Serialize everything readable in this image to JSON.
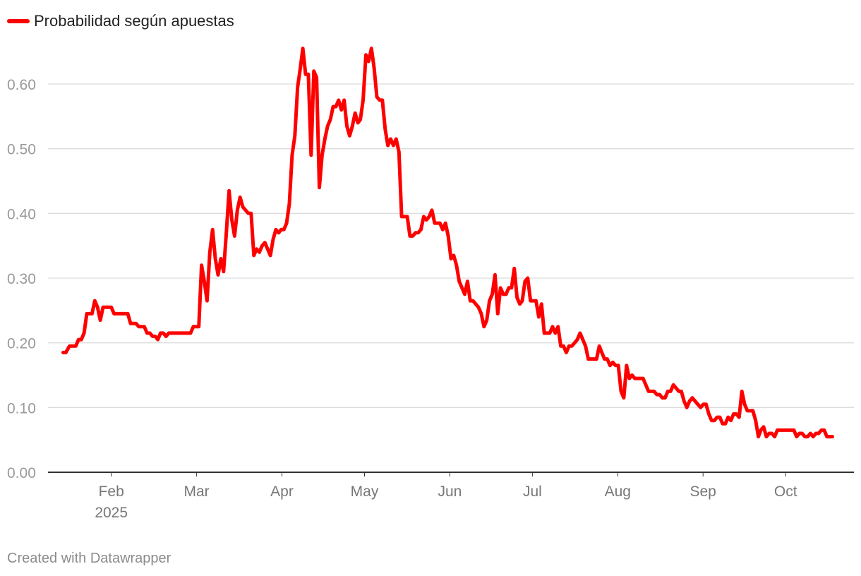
{
  "legend": {
    "label": "Probabilidad según apuestas",
    "color": "#ff0000"
  },
  "footer": {
    "credit": "Created with Datawrapper"
  },
  "chart_data": {
    "type": "line",
    "title": "",
    "xlabel": "",
    "ylabel": "",
    "ylim": [
      0,
      0.65
    ],
    "y_ticks": [
      "0.00",
      "0.10",
      "0.20",
      "0.30",
      "0.40",
      "0.50",
      "0.60"
    ],
    "x_domain_days": [
      0,
      291
    ],
    "x_ticks": [
      {
        "day": 23,
        "label": "Feb",
        "sublabel": "2025"
      },
      {
        "day": 54,
        "label": "Mar"
      },
      {
        "day": 85,
        "label": "Apr"
      },
      {
        "day": 115,
        "label": "May"
      },
      {
        "day": 146,
        "label": "Jun"
      },
      {
        "day": 176,
        "label": "Jul"
      },
      {
        "day": 207,
        "label": "Aug"
      },
      {
        "day": 238,
        "label": "Sep"
      },
      {
        "day": 268,
        "label": "Oct"
      }
    ],
    "grid": true,
    "series": [
      {
        "name": "Probabilidad según apuestas",
        "color": "#ff0000",
        "points": [
          [
            5.5,
            0.185
          ],
          [
            6.5,
            0.185
          ],
          [
            7.8,
            0.195
          ],
          [
            9.3,
            0.195
          ],
          [
            10.1,
            0.195
          ],
          [
            11.1,
            0.205
          ],
          [
            12.1,
            0.205
          ],
          [
            13.1,
            0.215
          ],
          [
            14.1,
            0.245
          ],
          [
            16.0,
            0.245
          ],
          [
            17.0,
            0.265
          ],
          [
            18.0,
            0.255
          ],
          [
            19.0,
            0.235
          ],
          [
            20.0,
            0.255
          ],
          [
            23.0,
            0.255
          ],
          [
            24.0,
            0.245
          ],
          [
            29.0,
            0.245
          ],
          [
            30.0,
            0.23
          ],
          [
            32.0,
            0.23
          ],
          [
            33.0,
            0.225
          ],
          [
            35.0,
            0.225
          ],
          [
            36.0,
            0.215
          ],
          [
            37.0,
            0.215
          ],
          [
            38.0,
            0.21
          ],
          [
            39.0,
            0.21
          ],
          [
            39.9,
            0.205
          ],
          [
            40.9,
            0.215
          ],
          [
            41.9,
            0.215
          ],
          [
            42.9,
            0.21
          ],
          [
            43.9,
            0.215
          ],
          [
            49.8,
            0.215
          ],
          [
            51.8,
            0.215
          ],
          [
            52.8,
            0.225
          ],
          [
            54.8,
            0.225
          ],
          [
            55.8,
            0.32
          ],
          [
            56.8,
            0.295
          ],
          [
            57.8,
            0.265
          ],
          [
            58.8,
            0.34
          ],
          [
            59.8,
            0.375
          ],
          [
            60.8,
            0.33
          ],
          [
            61.8,
            0.305
          ],
          [
            62.8,
            0.33
          ],
          [
            63.8,
            0.31
          ],
          [
            64.8,
            0.37
          ],
          [
            65.8,
            0.435
          ],
          [
            66.8,
            0.39
          ],
          [
            67.8,
            0.365
          ],
          [
            68.8,
            0.405
          ],
          [
            69.8,
            0.425
          ],
          [
            70.8,
            0.41
          ],
          [
            71.8,
            0.405
          ],
          [
            72.8,
            0.4
          ],
          [
            73.8,
            0.4
          ],
          [
            74.8,
            0.335
          ],
          [
            75.8,
            0.345
          ],
          [
            76.8,
            0.34
          ],
          [
            77.8,
            0.35
          ],
          [
            78.8,
            0.355
          ],
          [
            79.8,
            0.345
          ],
          [
            80.8,
            0.335
          ],
          [
            81.8,
            0.36
          ],
          [
            82.8,
            0.375
          ],
          [
            83.8,
            0.37
          ],
          [
            84.7,
            0.375
          ],
          [
            85.7,
            0.375
          ],
          [
            86.7,
            0.385
          ],
          [
            87.7,
            0.415
          ],
          [
            88.7,
            0.49
          ],
          [
            89.7,
            0.52
          ],
          [
            90.7,
            0.595
          ],
          [
            91.7,
            0.625
          ],
          [
            92.6,
            0.655
          ],
          [
            93.6,
            0.615
          ],
          [
            94.6,
            0.615
          ],
          [
            95.6,
            0.49
          ],
          [
            96.6,
            0.62
          ],
          [
            97.6,
            0.61
          ],
          [
            98.6,
            0.44
          ],
          [
            99.6,
            0.49
          ],
          [
            100.6,
            0.515
          ],
          [
            101.6,
            0.535
          ],
          [
            102.6,
            0.545
          ],
          [
            103.6,
            0.565
          ],
          [
            104.6,
            0.565
          ],
          [
            105.6,
            0.575
          ],
          [
            106.6,
            0.56
          ],
          [
            107.6,
            0.575
          ],
          [
            108.6,
            0.535
          ],
          [
            109.6,
            0.52
          ],
          [
            110.6,
            0.535
          ],
          [
            111.6,
            0.555
          ],
          [
            112.6,
            0.54
          ],
          [
            113.5,
            0.545
          ],
          [
            114.5,
            0.575
          ],
          [
            115.5,
            0.645
          ],
          [
            116.5,
            0.635
          ],
          [
            117.5,
            0.655
          ],
          [
            118.5,
            0.625
          ],
          [
            119.5,
            0.58
          ],
          [
            120.5,
            0.575
          ],
          [
            121.5,
            0.575
          ],
          [
            122.5,
            0.53
          ],
          [
            123.5,
            0.505
          ],
          [
            124.5,
            0.515
          ],
          [
            125.5,
            0.505
          ],
          [
            126.5,
            0.515
          ],
          [
            127.5,
            0.495
          ],
          [
            128.5,
            0.395
          ],
          [
            130.5,
            0.395
          ],
          [
            131.5,
            0.365
          ],
          [
            132.5,
            0.365
          ],
          [
            133.5,
            0.37
          ],
          [
            134.5,
            0.37
          ],
          [
            135.5,
            0.375
          ],
          [
            136.5,
            0.395
          ],
          [
            137.5,
            0.39
          ],
          [
            138.5,
            0.395
          ],
          [
            139.5,
            0.405
          ],
          [
            140.5,
            0.385
          ],
          [
            142.4,
            0.385
          ],
          [
            143.4,
            0.375
          ],
          [
            144.4,
            0.385
          ],
          [
            145.4,
            0.365
          ],
          [
            146.4,
            0.33
          ],
          [
            147.4,
            0.335
          ],
          [
            148.4,
            0.32
          ],
          [
            149.4,
            0.295
          ],
          [
            150.4,
            0.285
          ],
          [
            151.4,
            0.275
          ],
          [
            152.4,
            0.295
          ],
          [
            153.4,
            0.265
          ],
          [
            154.4,
            0.265
          ],
          [
            155.4,
            0.26
          ],
          [
            156.4,
            0.255
          ],
          [
            157.4,
            0.245
          ],
          [
            158.4,
            0.225
          ],
          [
            159.4,
            0.235
          ],
          [
            160.4,
            0.265
          ],
          [
            161.4,
            0.275
          ],
          [
            162.4,
            0.305
          ],
          [
            163.4,
            0.245
          ],
          [
            164.4,
            0.285
          ],
          [
            165.4,
            0.275
          ],
          [
            166.4,
            0.275
          ],
          [
            167.4,
            0.285
          ],
          [
            168.4,
            0.285
          ],
          [
            169.4,
            0.315
          ],
          [
            170.4,
            0.27
          ],
          [
            171.4,
            0.26
          ],
          [
            172.3,
            0.265
          ],
          [
            173.3,
            0.295
          ],
          [
            174.3,
            0.3
          ],
          [
            175.3,
            0.265
          ],
          [
            177.3,
            0.265
          ],
          [
            178.3,
            0.24
          ],
          [
            179.3,
            0.26
          ],
          [
            180.3,
            0.215
          ],
          [
            182.3,
            0.215
          ],
          [
            183.3,
            0.225
          ],
          [
            184.3,
            0.215
          ],
          [
            185.3,
            0.225
          ],
          [
            186.3,
            0.195
          ],
          [
            187.3,
            0.195
          ],
          [
            188.3,
            0.185
          ],
          [
            189.3,
            0.195
          ],
          [
            190.3,
            0.195
          ],
          [
            191.3,
            0.2
          ],
          [
            192.3,
            0.205
          ],
          [
            193.3,
            0.215
          ],
          [
            194.3,
            0.205
          ],
          [
            195.3,
            0.195
          ],
          [
            196.3,
            0.175
          ],
          [
            199.3,
            0.175
          ],
          [
            200.3,
            0.195
          ],
          [
            201.2,
            0.185
          ],
          [
            202.2,
            0.175
          ],
          [
            203.2,
            0.175
          ],
          [
            204.2,
            0.165
          ],
          [
            205.2,
            0.17
          ],
          [
            206.2,
            0.165
          ],
          [
            207.2,
            0.165
          ],
          [
            208.2,
            0.125
          ],
          [
            209.2,
            0.115
          ],
          [
            210.2,
            0.165
          ],
          [
            211.2,
            0.145
          ],
          [
            212.2,
            0.15
          ],
          [
            213.2,
            0.145
          ],
          [
            216.2,
            0.145
          ],
          [
            217.2,
            0.135
          ],
          [
            218.2,
            0.125
          ],
          [
            220.2,
            0.125
          ],
          [
            221.2,
            0.12
          ],
          [
            222.2,
            0.12
          ],
          [
            223.2,
            0.115
          ],
          [
            224.2,
            0.115
          ],
          [
            225.2,
            0.125
          ],
          [
            226.2,
            0.125
          ],
          [
            227.2,
            0.135
          ],
          [
            228.2,
            0.13
          ],
          [
            229.2,
            0.125
          ],
          [
            230.1,
            0.125
          ],
          [
            231.1,
            0.11
          ],
          [
            232.1,
            0.1
          ],
          [
            233.1,
            0.11
          ],
          [
            234.1,
            0.115
          ],
          [
            235.1,
            0.11
          ],
          [
            236.1,
            0.105
          ],
          [
            237.1,
            0.1
          ],
          [
            238.1,
            0.105
          ],
          [
            239.1,
            0.105
          ],
          [
            240.1,
            0.09
          ],
          [
            241.1,
            0.08
          ],
          [
            242.1,
            0.08
          ],
          [
            243.1,
            0.085
          ],
          [
            244.1,
            0.085
          ],
          [
            245.1,
            0.075
          ],
          [
            246.1,
            0.075
          ],
          [
            247.1,
            0.085
          ],
          [
            248.1,
            0.08
          ],
          [
            249.1,
            0.09
          ],
          [
            250.1,
            0.09
          ],
          [
            251.1,
            0.085
          ],
          [
            252.1,
            0.125
          ],
          [
            253.1,
            0.105
          ],
          [
            254.1,
            0.095
          ],
          [
            256.1,
            0.095
          ],
          [
            257.1,
            0.08
          ],
          [
            258.1,
            0.055
          ],
          [
            259.0,
            0.065
          ],
          [
            260.0,
            0.07
          ],
          [
            261.0,
            0.055
          ],
          [
            262.0,
            0.06
          ],
          [
            263.0,
            0.06
          ],
          [
            264.0,
            0.055
          ],
          [
            265.0,
            0.065
          ],
          [
            271.0,
            0.065
          ],
          [
            272.0,
            0.055
          ],
          [
            273.0,
            0.06
          ],
          [
            274.0,
            0.06
          ],
          [
            275.0,
            0.055
          ],
          [
            276.0,
            0.055
          ],
          [
            277.0,
            0.06
          ],
          [
            278.0,
            0.055
          ],
          [
            279.0,
            0.06
          ],
          [
            280.0,
            0.06
          ],
          [
            281.0,
            0.065
          ],
          [
            282.0,
            0.065
          ],
          [
            283.0,
            0.055
          ],
          [
            285.0,
            0.055
          ]
        ]
      }
    ]
  }
}
